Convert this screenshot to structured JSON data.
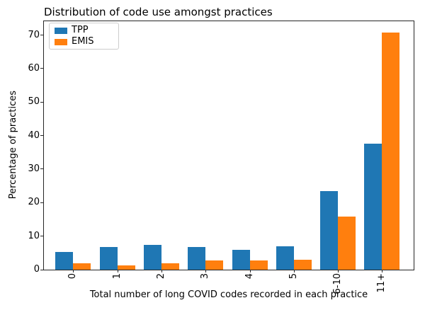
{
  "chart_data": {
    "type": "bar",
    "title": "Distribution of code use amongst practices",
    "xlabel": "Total number of long COVID codes recorded in each practice",
    "ylabel": "Percentage of practices",
    "categories": [
      "0",
      "1",
      "2",
      "3",
      "4",
      "5",
      "6-10",
      "11+"
    ],
    "series": [
      {
        "name": "TPP",
        "color": "#1f77b4",
        "values": [
          5.3,
          6.8,
          7.4,
          6.8,
          6.0,
          7.0,
          23.4,
          37.6
        ]
      },
      {
        "name": "EMIS",
        "color": "#ff7f0e",
        "values": [
          1.9,
          1.3,
          1.9,
          2.8,
          2.8,
          3.0,
          15.9,
          70.7
        ]
      }
    ],
    "yticks": [
      0,
      10,
      20,
      30,
      40,
      50,
      60,
      70
    ],
    "ylim": [
      0,
      74.15
    ],
    "grid": false,
    "legend_position": "upper left",
    "colors": {
      "axis": "#262626",
      "legend_border": "#cccccc",
      "background": "#ffffff"
    }
  }
}
